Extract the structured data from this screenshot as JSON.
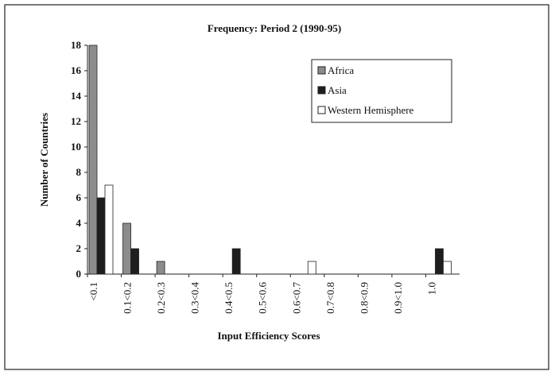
{
  "chart_data": {
    "type": "bar",
    "title": "Frequency: Period 2 (1990-95)",
    "xlabel": "Input Efficiency Scores",
    "ylabel": "Number of Countries",
    "categories": [
      "<0.1",
      "0.1<0.2",
      "0.2<0.3",
      "0.3<0.4",
      "0.4<0.5",
      "0.5<0.6",
      "0.6<0.7",
      "0.7<0.8",
      "0.8<0.9",
      "0.9<1.0",
      "1.0"
    ],
    "series": [
      {
        "name": "Africa",
        "color": "#8c8c8c",
        "values": [
          18,
          4,
          1,
          0,
          0,
          0,
          0,
          0,
          0,
          0,
          0
        ]
      },
      {
        "name": "Asia",
        "color": "#1e1e1e",
        "values": [
          6,
          2,
          0,
          0,
          2,
          0,
          0,
          0,
          0,
          0,
          2
        ]
      },
      {
        "name": "Western Hemisphere",
        "color": "#ffffff",
        "values": [
          7,
          0,
          0,
          0,
          0,
          0,
          1,
          0,
          0,
          0,
          1
        ]
      }
    ],
    "ylim": [
      0,
      18
    ],
    "yticks": [
      0,
      2,
      4,
      6,
      8,
      10,
      12,
      14,
      16,
      18
    ],
    "legend": "upper right"
  }
}
